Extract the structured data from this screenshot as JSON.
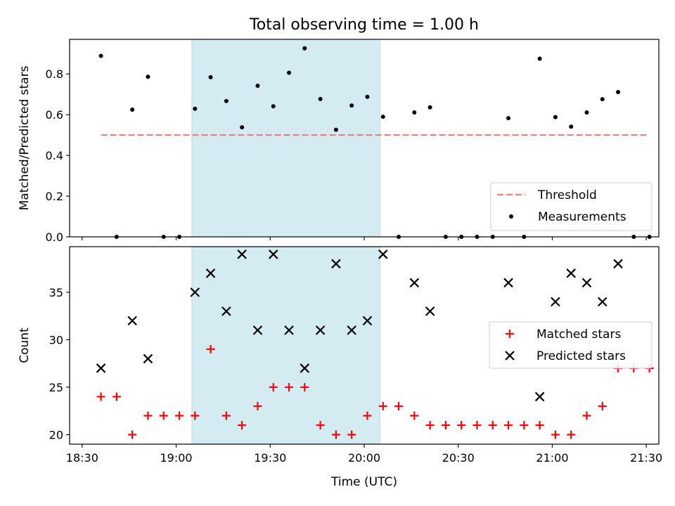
{
  "title": "Total observing time = 1.00 h",
  "chart_data": [
    {
      "type": "scatter",
      "ylabel": "Matched/Predicted stars",
      "ylim": [
        0,
        0.97
      ],
      "yticks": [
        0.0,
        0.2,
        0.4,
        0.6,
        0.8
      ],
      "ytick_labels": [
        "0.0",
        "0.2",
        "0.4",
        "0.6",
        "0.8"
      ],
      "grid": false,
      "legend_position": "bottom-right",
      "legend": [
        {
          "label": "Threshold",
          "style": "dashed-line",
          "color": "#f08080"
        },
        {
          "label": "Measurements",
          "style": "dot",
          "color": "#000000"
        }
      ],
      "shaded_span": {
        "x": [
          "19:05",
          "20:05"
        ],
        "color": "#add8e6"
      },
      "threshold": {
        "name": "Threshold",
        "value": 0.5,
        "x_range": [
          "18:36",
          "21:30"
        ],
        "color": "#f08080"
      },
      "series": [
        {
          "name": "Measurements",
          "color": "#000000",
          "points": [
            [
              "18:36",
              0.889
            ],
            [
              "18:41",
              0.0
            ],
            [
              "18:46",
              0.625
            ],
            [
              "18:51",
              0.786
            ],
            [
              "18:56",
              0.0
            ],
            [
              "19:01",
              0.0
            ],
            [
              "19:06",
              0.629
            ],
            [
              "19:11",
              0.784
            ],
            [
              "19:16",
              0.667
            ],
            [
              "19:21",
              0.538
            ],
            [
              "19:26",
              0.742
            ],
            [
              "19:31",
              0.641
            ],
            [
              "19:36",
              0.806
            ],
            [
              "19:41",
              0.926
            ],
            [
              "19:46",
              0.677
            ],
            [
              "19:51",
              0.526
            ],
            [
              "19:56",
              0.645
            ],
            [
              "20:01",
              0.688
            ],
            [
              "20:06",
              0.59
            ],
            [
              "20:11",
              0.0
            ],
            [
              "20:16",
              0.611
            ],
            [
              "20:21",
              0.636
            ],
            [
              "20:26",
              0.0
            ],
            [
              "20:31",
              0.0
            ],
            [
              "20:36",
              0.0
            ],
            [
              "20:41",
              0.0
            ],
            [
              "20:46",
              0.583
            ],
            [
              "20:51",
              0.0
            ],
            [
              "20:56",
              0.875
            ],
            [
              "21:01",
              0.588
            ],
            [
              "21:06",
              0.541
            ],
            [
              "21:11",
              0.611
            ],
            [
              "21:16",
              0.676
            ],
            [
              "21:21",
              0.711
            ],
            [
              "21:26",
              0.0
            ],
            [
              "21:31",
              0.0
            ]
          ]
        }
      ]
    },
    {
      "type": "scatter",
      "xlabel": "Time (UTC)",
      "ylabel": "Count",
      "ylim": [
        19,
        39.8
      ],
      "yticks": [
        20,
        25,
        30,
        35
      ],
      "ytick_labels": [
        "20",
        "25",
        "30",
        "35"
      ],
      "xlim": [
        "18:26",
        "21:34"
      ],
      "xticks": [
        "18:30",
        "19:00",
        "19:30",
        "20:00",
        "20:30",
        "21:00",
        "21:30"
      ],
      "xtick_labels": [
        "18:30",
        "19:00",
        "19:30",
        "20:00",
        "20:30",
        "21:00",
        "21:30"
      ],
      "grid": false,
      "legend_position": "right",
      "legend": [
        {
          "label": "Matched stars",
          "style": "plus",
          "color": "#ff0000"
        },
        {
          "label": "Predicted stars",
          "style": "x",
          "color": "#000000"
        }
      ],
      "shaded_span": {
        "x": [
          "19:05",
          "20:05"
        ],
        "color": "#add8e6"
      },
      "series": [
        {
          "name": "Matched stars",
          "marker": "plus",
          "color": "#ff0000",
          "points": [
            [
              "18:36",
              24
            ],
            [
              "18:41",
              24
            ],
            [
              "18:46",
              20
            ],
            [
              "18:51",
              22
            ],
            [
              "18:56",
              22
            ],
            [
              "19:01",
              22
            ],
            [
              "19:06",
              22
            ],
            [
              "19:11",
              29
            ],
            [
              "19:16",
              22
            ],
            [
              "19:21",
              21
            ],
            [
              "19:26",
              23
            ],
            [
              "19:31",
              25
            ],
            [
              "19:36",
              25
            ],
            [
              "19:41",
              25
            ],
            [
              "19:46",
              21
            ],
            [
              "19:51",
              20
            ],
            [
              "19:56",
              20
            ],
            [
              "20:01",
              22
            ],
            [
              "20:06",
              23
            ],
            [
              "20:11",
              23
            ],
            [
              "20:16",
              22
            ],
            [
              "20:21",
              21
            ],
            [
              "20:26",
              21
            ],
            [
              "20:31",
              21
            ],
            [
              "20:36",
              21
            ],
            [
              "20:41",
              21
            ],
            [
              "20:46",
              21
            ],
            [
              "20:51",
              21
            ],
            [
              "20:56",
              21
            ],
            [
              "21:01",
              20
            ],
            [
              "21:06",
              20
            ],
            [
              "21:11",
              22
            ],
            [
              "21:16",
              23
            ],
            [
              "21:21",
              27
            ],
            [
              "21:26",
              27
            ],
            [
              "21:31",
              27
            ]
          ]
        },
        {
          "name": "Predicted stars",
          "marker": "x",
          "color": "#000000",
          "points": [
            [
              "18:36",
              27
            ],
            [
              "18:46",
              32
            ],
            [
              "18:51",
              28
            ],
            [
              "19:06",
              35
            ],
            [
              "19:11",
              37
            ],
            [
              "19:16",
              33
            ],
            [
              "19:21",
              39
            ],
            [
              "19:26",
              31
            ],
            [
              "19:31",
              39
            ],
            [
              "19:36",
              31
            ],
            [
              "19:41",
              27
            ],
            [
              "19:46",
              31
            ],
            [
              "19:51",
              38
            ],
            [
              "19:56",
              31
            ],
            [
              "20:01",
              32
            ],
            [
              "20:06",
              39
            ],
            [
              "20:16",
              36
            ],
            [
              "20:21",
              33
            ],
            [
              "20:46",
              36
            ],
            [
              "20:56",
              24
            ],
            [
              "21:01",
              34
            ],
            [
              "21:06",
              37
            ],
            [
              "21:11",
              36
            ],
            [
              "21:16",
              34
            ],
            [
              "21:21",
              38
            ]
          ]
        }
      ]
    }
  ]
}
